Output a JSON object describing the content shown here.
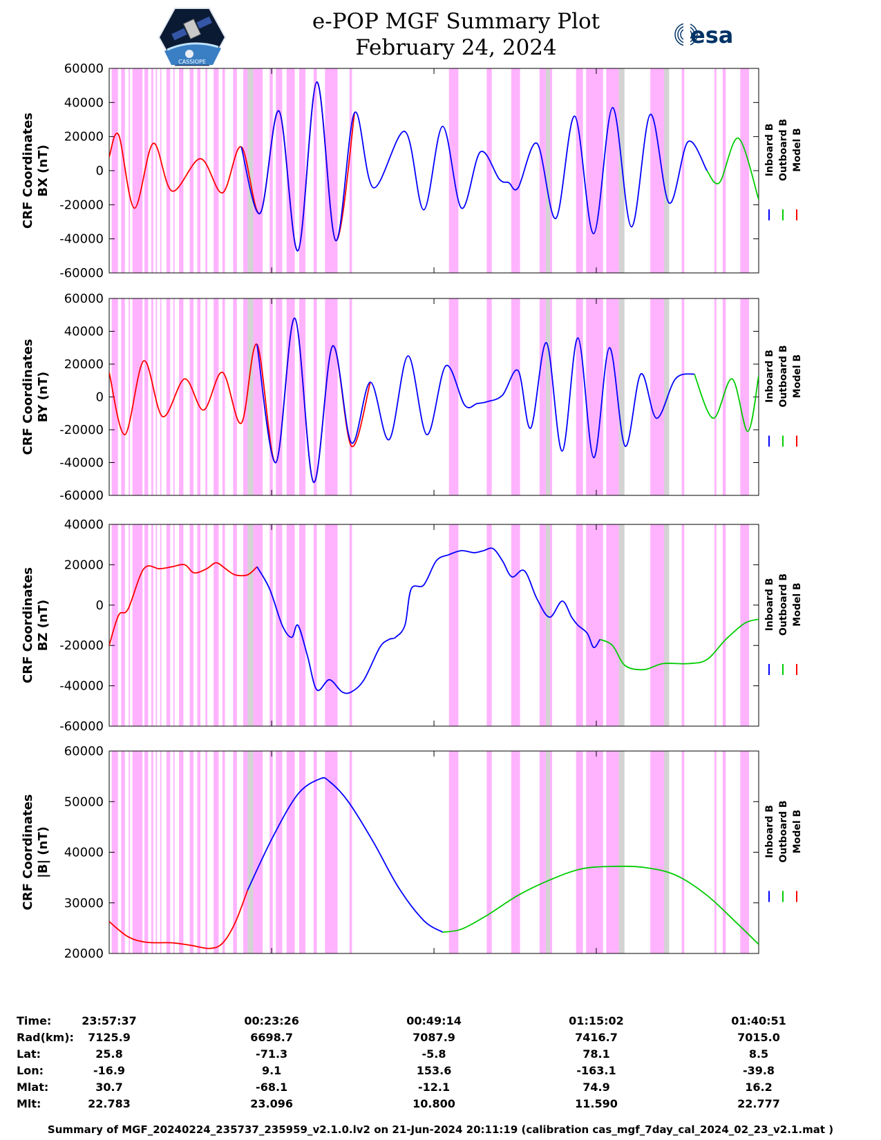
{
  "header": {
    "title": "e-POP MGF Summary Plot",
    "date": "February 24, 2024",
    "left_logo_text": "CASSIOPE",
    "right_logo_text": "esa"
  },
  "colors": {
    "inboard": "#0000ff",
    "outboard": "#00cc00",
    "model": "#ff0000",
    "shade_pink": "#ffb3ff",
    "shade_grey": "#d3d3d3"
  },
  "legend": {
    "inboard": "Inboard B",
    "outboard": "Outboard B",
    "model": "Model B"
  },
  "time_domain": [
    0,
    103.23
  ],
  "shading": {
    "pink": [
      [
        0.4,
        1.4
      ],
      [
        1.9,
        2.5
      ],
      [
        3.1,
        3.3
      ],
      [
        3.7,
        5.3
      ],
      [
        5.6,
        6.2
      ],
      [
        6.7,
        7.0
      ],
      [
        7.4,
        7.6
      ],
      [
        8.1,
        8.3
      ],
      [
        9.1,
        9.7
      ],
      [
        10.2,
        10.4
      ],
      [
        11.1,
        11.8
      ],
      [
        12.8,
        13.4
      ],
      [
        14.0,
        14.5
      ],
      [
        15.3,
        15.6
      ],
      [
        16.6,
        17.4
      ],
      [
        18.0,
        18.4
      ],
      [
        19.7,
        20.3
      ],
      [
        21.3,
        22.6
      ],
      [
        22.6,
        24.4
      ],
      [
        25.5,
        26.0
      ],
      [
        26.5,
        27.5
      ],
      [
        28.2,
        29.5
      ],
      [
        30.2,
        31.2
      ],
      [
        32.5,
        33.0
      ],
      [
        34.3,
        36.3
      ],
      [
        38.2,
        38.6
      ],
      [
        54.0,
        55.5
      ],
      [
        60.0,
        60.8
      ],
      [
        63.9,
        65.3
      ],
      [
        68.4,
        70.4
      ],
      [
        74.2,
        75.3
      ],
      [
        75.8,
        78.5
      ],
      [
        79.0,
        81.8
      ],
      [
        86.0,
        88.3
      ],
      [
        91.0,
        91.4
      ],
      [
        96.2,
        96.5
      ],
      [
        97.5,
        98.0
      ],
      [
        100.3,
        101.7
      ]
    ],
    "grey": [
      [
        22.0,
        22.9
      ],
      [
        69.4,
        70.1
      ],
      [
        81.0,
        81.9
      ],
      [
        88.2,
        89.0
      ]
    ]
  },
  "chart_data": [
    {
      "type": "line",
      "title": "",
      "ylabel": "CRF Coordinates BX (nT)",
      "ylim": [
        -60000,
        60000
      ],
      "yticks": [
        "60000",
        "40000",
        "20000",
        "0",
        "-20000",
        "-40000",
        "-60000"
      ],
      "series": [
        {
          "name": "Model B",
          "color": "#ff0000",
          "x": [
            0,
            1.5,
            4.0,
            7.0,
            10.0,
            14.5,
            18.0,
            21.0,
            24.0,
            27.0,
            30.0,
            33.0,
            36.0,
            39.0
          ],
          "values": [
            8000,
            21000,
            -22000,
            16000,
            -12000,
            7000,
            -13000,
            14000,
            -25000,
            35000,
            -47000,
            52000,
            -41000,
            34000
          ]
        },
        {
          "name": "Inboard B",
          "color": "#0000ff",
          "x": [
            21.0,
            24.0,
            27.0,
            30.0,
            33.0,
            36.0,
            39.0,
            42.0,
            47.0,
            50.0,
            53.0,
            56.0,
            59.0,
            62.0,
            63.5,
            65.0,
            68.0,
            71.0,
            74.0,
            77.0,
            80.0,
            83.0,
            86.0,
            89.0,
            92.0,
            95.0
          ],
          "values": [
            14000,
            -25000,
            35000,
            -47000,
            52000,
            -41000,
            34000,
            -10000,
            23000,
            -23000,
            26000,
            -22000,
            11000,
            -5000,
            -7000,
            -10000,
            16000,
            -28000,
            32000,
            -37000,
            37000,
            -33000,
            33000,
            -19000,
            17000,
            0
          ]
        },
        {
          "name": "Outboard B",
          "color": "#00cc00",
          "x": [
            95.0,
            97.0,
            100.0,
            103.23
          ],
          "values": [
            0,
            -7000,
            19000,
            -17000
          ]
        }
      ]
    },
    {
      "type": "line",
      "title": "",
      "ylabel": "CRF Coordinates BY (nT)",
      "ylim": [
        -60000,
        60000
      ],
      "yticks": [
        "60000",
        "40000",
        "20000",
        "0",
        "-20000",
        "-40000",
        "-60000"
      ],
      "series": [
        {
          "name": "Model B",
          "color": "#ff0000",
          "x": [
            0,
            2.5,
            5.5,
            8.5,
            12.0,
            15.0,
            18.0,
            21.0,
            23.5,
            26.5,
            29.5,
            32.5,
            35.5,
            38.5,
            41.5
          ],
          "values": [
            15000,
            -23000,
            22000,
            -12000,
            11000,
            -8000,
            15000,
            -16000,
            32000,
            -40000,
            48000,
            -52000,
            31000,
            -30000,
            9000
          ]
        },
        {
          "name": "Inboard B",
          "color": "#0000ff",
          "x": [
            23.5,
            26.5,
            29.5,
            32.5,
            35.5,
            38.5,
            41.5,
            44.5,
            47.5,
            50.5,
            53.5,
            56.5,
            58.5,
            60.0,
            62.5,
            65.0,
            67.0,
            69.5,
            72.0,
            74.5,
            77.0,
            79.5,
            82.0,
            84.5,
            87.0,
            90.0,
            93.0
          ],
          "values": [
            32000,
            -40000,
            48000,
            -52000,
            31000,
            -28000,
            9000,
            -26000,
            25000,
            -23000,
            19000,
            -5000,
            -4000,
            -3000,
            1000,
            16000,
            -19000,
            33000,
            -33000,
            36000,
            -37000,
            30000,
            -30000,
            14000,
            -13000,
            11000,
            14000
          ]
        },
        {
          "name": "Outboard B",
          "color": "#00cc00",
          "x": [
            93.0,
            96.0,
            99.0,
            101.5,
            103.23
          ],
          "values": [
            14000,
            -13000,
            11000,
            -21000,
            13000
          ]
        }
      ]
    },
    {
      "type": "line",
      "title": "",
      "ylabel": "CRF Coordinates BZ (nT)",
      "ylim": [
        -60000,
        40000
      ],
      "yticks": [
        "40000",
        "20000",
        "0",
        "-20000",
        "-40000",
        "-60000"
      ],
      "series": [
        {
          "name": "Model B",
          "color": "#ff0000",
          "x": [
            0,
            1.5,
            3.0,
            5.5,
            8.0,
            10.0,
            12.0,
            13.5,
            15.5,
            17.0,
            18.5,
            20.0,
            22.0,
            23.5
          ],
          "values": [
            -20000,
            -5000,
            -2000,
            18000,
            18000,
            19000,
            20000,
            16000,
            18000,
            21000,
            18000,
            15000,
            15000,
            19000
          ]
        },
        {
          "name": "Inboard B",
          "color": "#0000ff",
          "x": [
            23.5,
            25.5,
            27.5,
            29.0,
            30.0,
            31.5,
            33.0,
            35.0,
            37.0,
            38.5,
            40.5,
            43.0,
            44.5,
            45.5,
            47.0,
            48.0,
            50.0,
            52.0,
            54.0,
            56.0,
            58.0,
            59.5,
            61.0,
            62.5,
            64.0,
            66.0,
            68.0,
            70.0,
            72.0,
            73.5,
            74.5,
            76.0,
            77.0,
            78.0
          ],
          "values": [
            19000,
            8000,
            -10000,
            -16000,
            -10000,
            -25000,
            -42000,
            -37000,
            -43000,
            -43000,
            -37000,
            -21000,
            -17000,
            -16000,
            -10000,
            8000,
            10000,
            22000,
            25000,
            27000,
            26000,
            27000,
            28000,
            22000,
            14000,
            17000,
            3000,
            -6000,
            2000,
            -6000,
            -10000,
            -14000,
            -21000,
            -17000
          ]
        },
        {
          "name": "Outboard B",
          "color": "#00cc00",
          "x": [
            78.0,
            80.0,
            82.0,
            85.0,
            88.0,
            92.0,
            95.0,
            98.0,
            101.0,
            103.23
          ],
          "values": [
            -17000,
            -20000,
            -30000,
            -32000,
            -29000,
            -29000,
            -27000,
            -17000,
            -9000,
            -7000
          ]
        }
      ]
    },
    {
      "type": "line",
      "title": "",
      "ylabel": "CRF Coordinates |B| (nT)",
      "ylim": [
        20000,
        60000
      ],
      "yticks": [
        "60000",
        "50000",
        "40000",
        "30000",
        "20000"
      ],
      "series": [
        {
          "name": "Model B",
          "color": "#ff0000",
          "x": [
            0,
            3.0,
            6.0,
            10.0,
            13.0,
            16.0,
            18.0,
            20.0,
            22.0
          ],
          "values": [
            26300,
            23300,
            22200,
            22100,
            21600,
            21000,
            22000,
            26000,
            32500
          ]
        },
        {
          "name": "Inboard B",
          "color": "#0000ff",
          "x": [
            22.0,
            26.0,
            30.0,
            33.5,
            35.0,
            38.0,
            42.0,
            46.0,
            50.0,
            53.0
          ],
          "values": [
            32500,
            43000,
            51500,
            54500,
            54000,
            50000,
            42000,
            33000,
            26500,
            24200
          ]
        },
        {
          "name": "Outboard B",
          "color": "#00cc00",
          "x": [
            53.0,
            56.0,
            60.0,
            65.0,
            70.0,
            75.0,
            80.0,
            85.0,
            90.0,
            95.0,
            100.0,
            103.23
          ],
          "values": [
            24200,
            24800,
            27500,
            31500,
            34500,
            36700,
            37200,
            37000,
            35500,
            31500,
            25700,
            21800
          ]
        }
      ]
    }
  ],
  "x_ticks": [
    0,
    25.82,
    51.62,
    77.42,
    103.23
  ],
  "info": {
    "labels": [
      "Time:",
      "Rad(km):",
      "Lat:",
      "Lon:",
      "Mlat:",
      "Mlt:"
    ],
    "columns": [
      {
        "time": "23:57:37",
        "rad": "7125.9",
        "lat": "25.8",
        "lon": "-16.9",
        "mlat": "30.7",
        "mlt": "22.783"
      },
      {
        "time": "00:23:26",
        "rad": "6698.7",
        "lat": "-71.3",
        "lon": "9.1",
        "mlat": "-68.1",
        "mlt": "23.096"
      },
      {
        "time": "00:49:14",
        "rad": "7087.9",
        "lat": "-5.8",
        "lon": "153.6",
        "mlat": "-12.1",
        "mlt": "10.800"
      },
      {
        "time": "01:15:02",
        "rad": "7416.7",
        "lat": "78.1",
        "lon": "-163.1",
        "mlat": "74.9",
        "mlt": "11.590"
      },
      {
        "time": "01:40:51",
        "rad": "7015.0",
        "lat": "8.5",
        "lon": "-39.8",
        "mlat": "16.2",
        "mlt": "22.777"
      }
    ]
  },
  "footer": "Summary of MGF_20240224_235737_235959_v2.1.0.lv2 on 21-Jun-2024 20:11:19 (calibration cas_mgf_7day_cal_2024_02_23_v2.1.mat )"
}
